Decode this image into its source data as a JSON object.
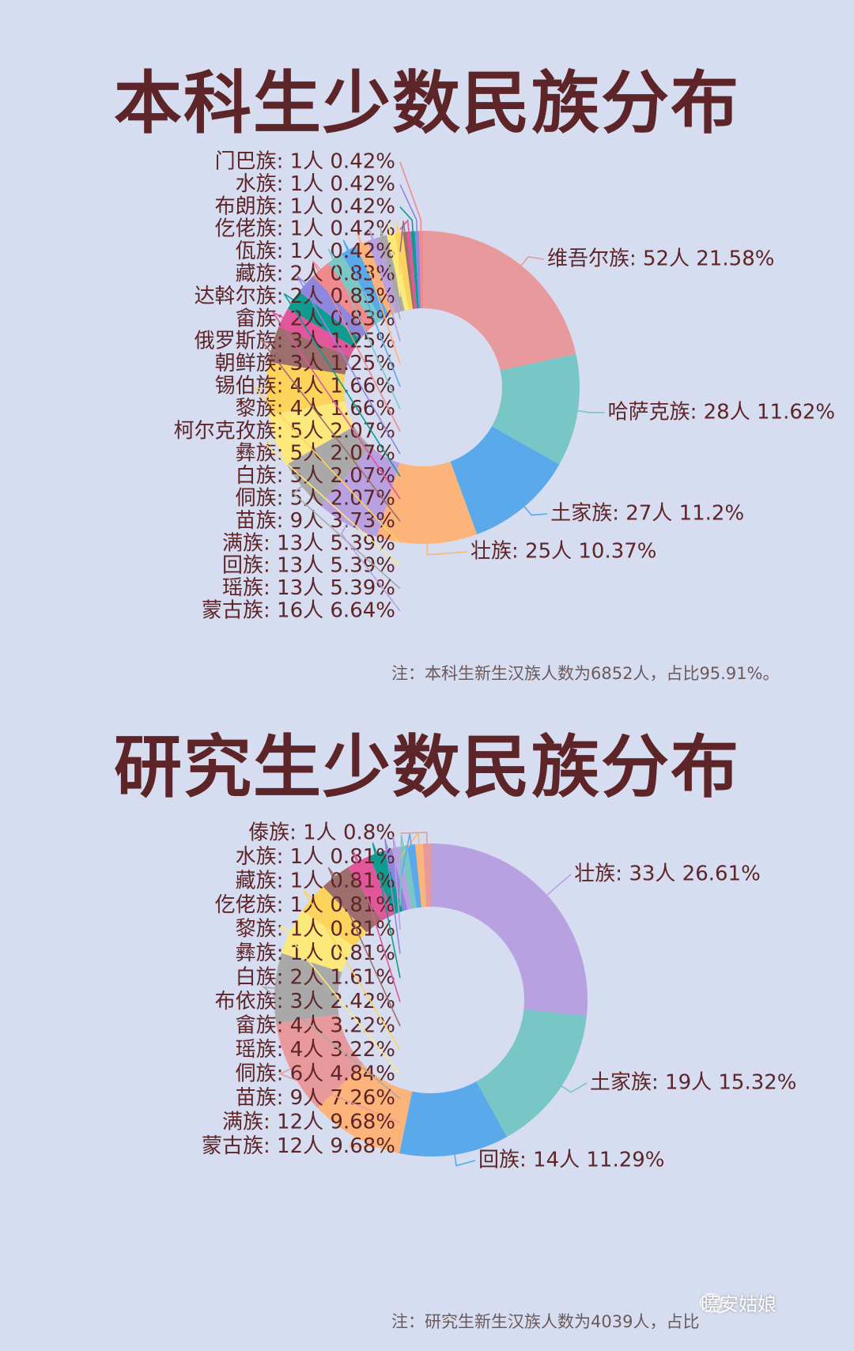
{
  "charts": [
    {
      "title": "本科生少数民族分布",
      "note": "注：本科生新生汉族人数为6852人，占比95.91%。"
    },
    {
      "title": "研究生少数民族分布",
      "note": "注：研究生新生汉族人数为4039人，占比"
    }
  ],
  "watermark": "曉安姑娘",
  "chart_data": [
    {
      "type": "pie",
      "title": "本科生少数民族分布",
      "slices": [
        {
          "label": "维吾尔族: 52人 21.58%",
          "value": 52,
          "percent": 21.58,
          "color": "#e8999b"
        },
        {
          "label": "哈萨克族: 28人 11.62%",
          "value": 28,
          "percent": 11.62,
          "color": "#79c6c6"
        },
        {
          "label": "土家族: 27人 11.2%",
          "value": 27,
          "percent": 11.2,
          "color": "#5aa9ea"
        },
        {
          "label": "壮族: 25人 10.37%",
          "value": 25,
          "percent": 10.37,
          "color": "#fcb47a"
        },
        {
          "label": "蒙古族: 16人 6.64%",
          "value": 16,
          "percent": 6.64,
          "color": "#b8a1e0"
        },
        {
          "label": "瑶族: 13人 5.39%",
          "value": 13,
          "percent": 5.39,
          "color": "#a9a9a9"
        },
        {
          "label": "回族: 13人 5.39%",
          "value": 13,
          "percent": 5.39,
          "color": "#fce97c"
        },
        {
          "label": "满族: 13人 5.39%",
          "value": 13,
          "percent": 5.39,
          "color": "#fcd45c"
        },
        {
          "label": "苗族: 9人 3.73%",
          "value": 9,
          "percent": 3.73,
          "color": "#9c6e6c"
        },
        {
          "label": "侗族: 5人 2.07%",
          "value": 5,
          "percent": 2.07,
          "color": "#e2569b"
        },
        {
          "label": "白族: 5人 2.07%",
          "value": 5,
          "percent": 2.07,
          "color": "#0f9c90"
        },
        {
          "label": "彝族: 5人 2.07%",
          "value": 5,
          "percent": 2.07,
          "color": "#8f86de"
        },
        {
          "label": "柯尔克孜族: 5人 2.07%",
          "value": 5,
          "percent": 2.07,
          "color": "#ef8a8e"
        },
        {
          "label": "黎族: 4人 1.66%",
          "value": 4,
          "percent": 1.66,
          "color": "#7cc8c6"
        },
        {
          "label": "锡伯族: 4人 1.66%",
          "value": 4,
          "percent": 1.66,
          "color": "#5aa9ea"
        },
        {
          "label": "朝鲜族: 3人 1.25%",
          "value": 3,
          "percent": 1.25,
          "color": "#fcb47a"
        },
        {
          "label": "俄罗斯族: 3人 1.25%",
          "value": 3,
          "percent": 1.25,
          "color": "#b8a1e0"
        },
        {
          "label": "畲族: 2人 0.83%",
          "value": 2,
          "percent": 0.83,
          "color": "#a9a9a9"
        },
        {
          "label": "达斡尔族: 2人 0.83%",
          "value": 2,
          "percent": 0.83,
          "color": "#fce97c"
        },
        {
          "label": "藏族: 2人 0.83%",
          "value": 2,
          "percent": 0.83,
          "color": "#fcd45c"
        },
        {
          "label": "佤族: 1人 0.42%",
          "value": 1,
          "percent": 0.42,
          "color": "#9c6e6c"
        },
        {
          "label": "仡佬族: 1人 0.42%",
          "value": 1,
          "percent": 0.42,
          "color": "#e2569b"
        },
        {
          "label": "布朗族: 1人 0.42%",
          "value": 1,
          "percent": 0.42,
          "color": "#0f9c90"
        },
        {
          "label": "水族: 1人 0.42%",
          "value": 1,
          "percent": 0.42,
          "color": "#8f86de"
        },
        {
          "label": "门巴族: 1人 0.42%",
          "value": 1,
          "percent": 0.42,
          "color": "#ef8a8e"
        }
      ]
    },
    {
      "type": "pie",
      "title": "研究生少数民族分布",
      "slices": [
        {
          "label": "壮族: 33人 26.61%",
          "value": 33,
          "percent": 26.61,
          "color": "#b8a1e0"
        },
        {
          "label": "土家族: 19人 15.32%",
          "value": 19,
          "percent": 15.32,
          "color": "#79c6c6"
        },
        {
          "label": "回族: 14人 11.29%",
          "value": 14,
          "percent": 11.29,
          "color": "#5aa9ea"
        },
        {
          "label": "蒙古族: 12人 9.68%",
          "value": 12,
          "percent": 9.68,
          "color": "#fcb47a"
        },
        {
          "label": "满族: 12人 9.68%",
          "value": 12,
          "percent": 9.68,
          "color": "#e8999b"
        },
        {
          "label": "苗族: 9人 7.26%",
          "value": 9,
          "percent": 7.26,
          "color": "#a9a9a9"
        },
        {
          "label": "侗族: 6人 4.84%",
          "value": 6,
          "percent": 4.84,
          "color": "#fce97c"
        },
        {
          "label": "瑶族: 4人 3.22%",
          "value": 4,
          "percent": 3.22,
          "color": "#fcd45c"
        },
        {
          "label": "畲族: 4人 3.22%",
          "value": 4,
          "percent": 3.22,
          "color": "#9c6e6c"
        },
        {
          "label": "布依族: 3人 2.42%",
          "value": 3,
          "percent": 2.42,
          "color": "#e2569b"
        },
        {
          "label": "白族: 2人 1.61%",
          "value": 2,
          "percent": 1.61,
          "color": "#0f9c90"
        },
        {
          "label": "彝族: 1人 0.81%",
          "value": 1,
          "percent": 0.81,
          "color": "#8f86de"
        },
        {
          "label": "黎族: 1人 0.81%",
          "value": 1,
          "percent": 0.81,
          "color": "#b8a1e0"
        },
        {
          "label": "仡佬族: 1人 0.81%",
          "value": 1,
          "percent": 0.81,
          "color": "#79c6c6"
        },
        {
          "label": "藏族: 1人 0.81%",
          "value": 1,
          "percent": 0.81,
          "color": "#5aa9ea"
        },
        {
          "label": "水族: 1人 0.81%",
          "value": 1,
          "percent": 0.81,
          "color": "#fcb47a"
        },
        {
          "label": "傣族: 1人 0.8%",
          "value": 1,
          "percent": 0.8,
          "color": "#e8999b"
        }
      ]
    }
  ]
}
